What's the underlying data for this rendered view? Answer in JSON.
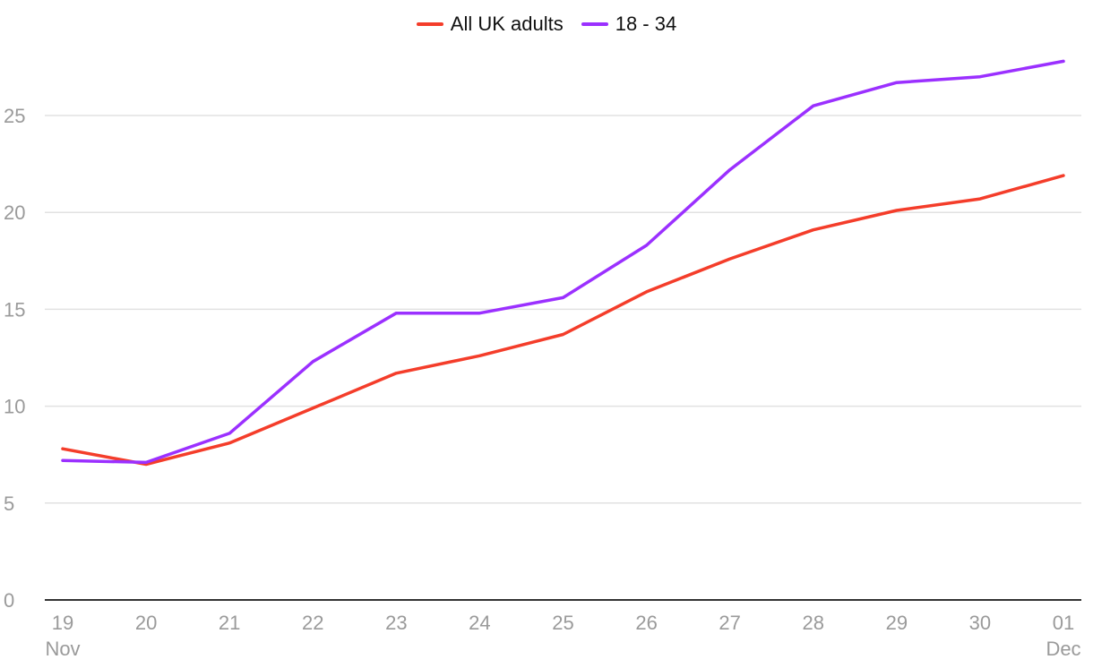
{
  "chart_data": {
    "type": "line",
    "title": "",
    "xlabel": "",
    "ylabel": "",
    "categories": [
      "19",
      "20",
      "21",
      "22",
      "23",
      "24",
      "25",
      "26",
      "27",
      "28",
      "29",
      "30",
      "01"
    ],
    "category_sublabels": {
      "0": "Nov",
      "12": "Dec"
    },
    "ylim": [
      0,
      28
    ],
    "yticks": [
      0,
      5,
      10,
      15,
      20,
      25
    ],
    "grid": true,
    "legend_position": "top-center",
    "series": [
      {
        "name": "All UK adults",
        "color": "#f43d2a",
        "values": [
          7.8,
          7.0,
          8.1,
          9.9,
          11.7,
          12.6,
          13.7,
          15.9,
          17.6,
          19.1,
          20.1,
          20.7,
          21.9
        ]
      },
      {
        "name": "18 - 34",
        "color": "#9b30ff",
        "values": [
          7.2,
          7.1,
          8.6,
          12.3,
          14.8,
          14.8,
          15.6,
          18.3,
          22.2,
          25.5,
          26.7,
          27.0,
          27.8
        ]
      }
    ]
  }
}
